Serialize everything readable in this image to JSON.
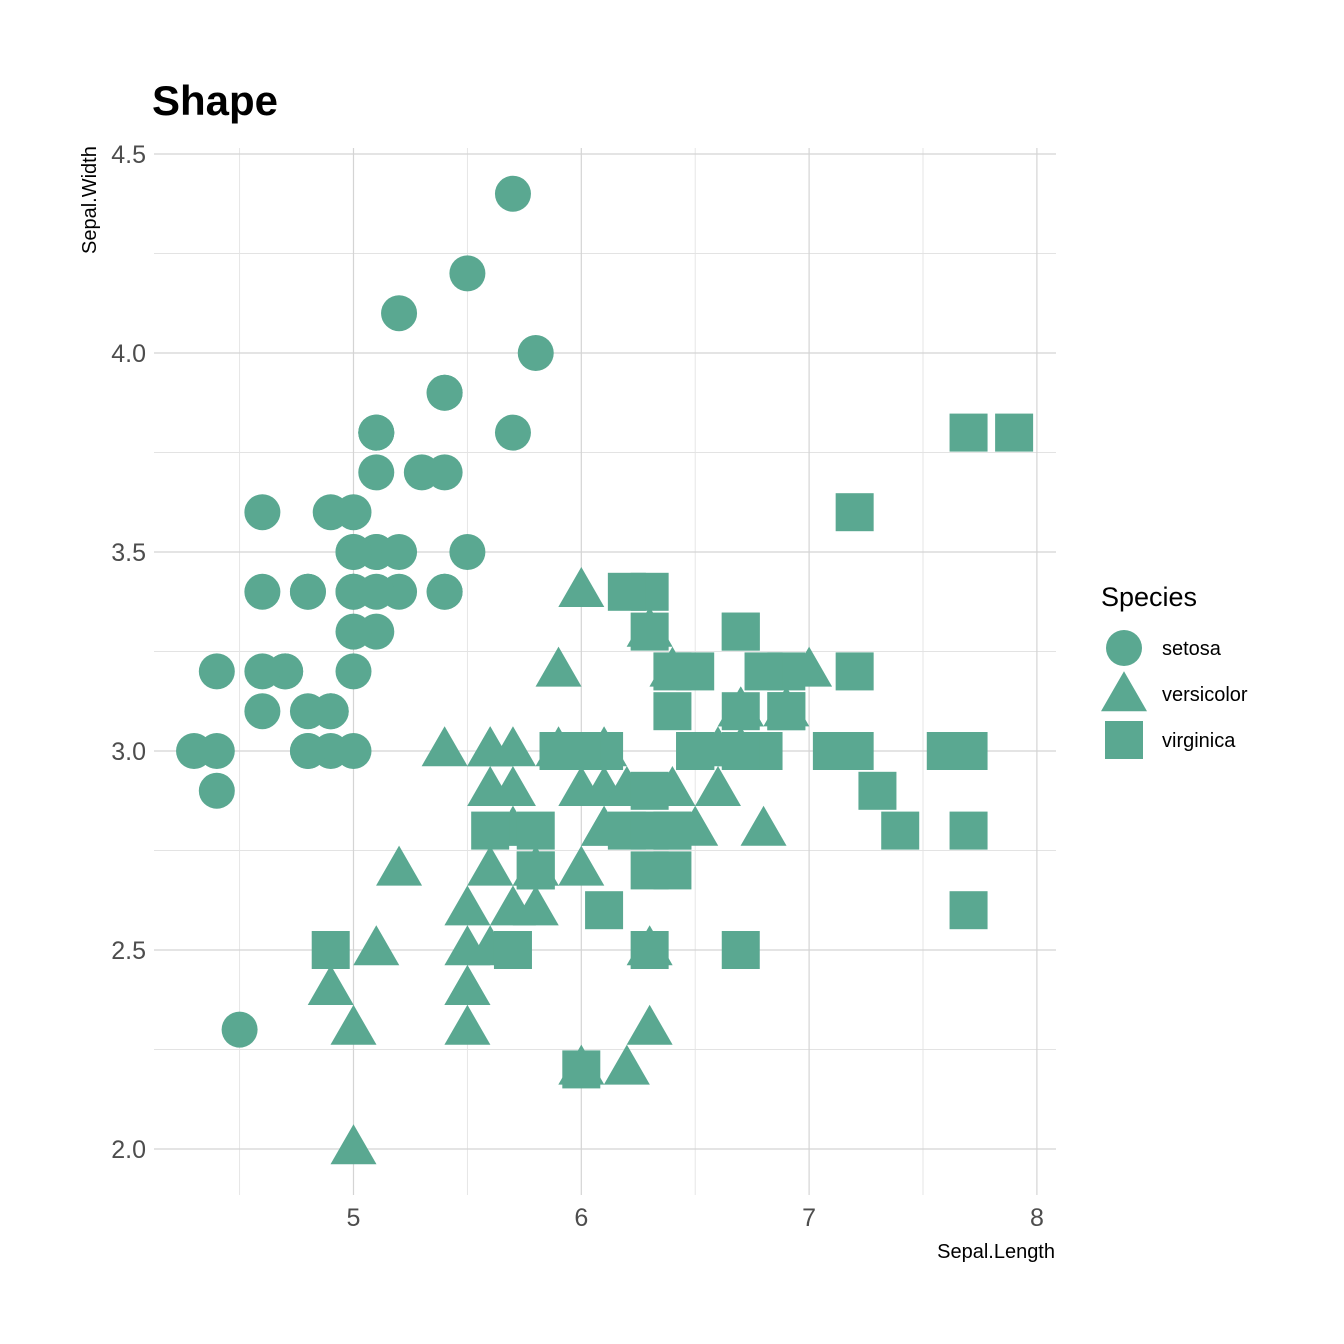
{
  "chart_data": {
    "type": "scatter",
    "title": "Shape",
    "xlabel": "Sepal.Length",
    "ylabel": "Sepal.Width",
    "xlim": [
      4.3,
      7.9
    ],
    "ylim": [
      2.0,
      4.4
    ],
    "x_ticks": [
      5,
      6,
      7,
      8
    ],
    "y_ticks": [
      2.0,
      2.5,
      3.0,
      3.5,
      4.0,
      4.5
    ],
    "x_tick_labels": [
      "5",
      "6",
      "7",
      "8"
    ],
    "y_tick_labels": [
      "2.0",
      "2.5",
      "3.0",
      "3.5",
      "4.0",
      "4.5"
    ],
    "grid": true,
    "marker_color": "#5aa891",
    "legend": {
      "title": "Species",
      "position": "right",
      "entries": [
        {
          "label": "setosa",
          "shape": "circle"
        },
        {
          "label": "versicolor",
          "shape": "triangle"
        },
        {
          "label": "virginica",
          "shape": "square"
        }
      ]
    },
    "series": [
      {
        "name": "setosa",
        "shape": "circle",
        "points": [
          [
            5.1,
            3.5
          ],
          [
            4.9,
            3.0
          ],
          [
            4.7,
            3.2
          ],
          [
            4.6,
            3.1
          ],
          [
            5.0,
            3.6
          ],
          [
            5.4,
            3.9
          ],
          [
            4.6,
            3.4
          ],
          [
            5.0,
            3.4
          ],
          [
            4.4,
            2.9
          ],
          [
            4.9,
            3.1
          ],
          [
            5.4,
            3.7
          ],
          [
            4.8,
            3.4
          ],
          [
            4.8,
            3.0
          ],
          [
            4.3,
            3.0
          ],
          [
            5.8,
            4.0
          ],
          [
            5.7,
            4.4
          ],
          [
            5.4,
            3.9
          ],
          [
            5.1,
            3.5
          ],
          [
            5.7,
            3.8
          ],
          [
            5.1,
            3.8
          ],
          [
            5.4,
            3.4
          ],
          [
            5.1,
            3.7
          ],
          [
            4.6,
            3.6
          ],
          [
            5.1,
            3.3
          ],
          [
            4.8,
            3.4
          ],
          [
            5.0,
            3.0
          ],
          [
            5.0,
            3.4
          ],
          [
            5.2,
            3.5
          ],
          [
            5.2,
            3.4
          ],
          [
            4.7,
            3.2
          ],
          [
            4.8,
            3.1
          ],
          [
            5.4,
            3.4
          ],
          [
            5.2,
            4.1
          ],
          [
            5.5,
            4.2
          ],
          [
            4.9,
            3.1
          ],
          [
            5.0,
            3.2
          ],
          [
            5.5,
            3.5
          ],
          [
            4.9,
            3.6
          ],
          [
            4.4,
            3.0
          ],
          [
            5.1,
            3.4
          ],
          [
            5.0,
            3.5
          ],
          [
            4.5,
            2.3
          ],
          [
            4.4,
            3.2
          ],
          [
            5.0,
            3.5
          ],
          [
            5.1,
            3.8
          ],
          [
            4.8,
            3.0
          ],
          [
            5.1,
            3.8
          ],
          [
            4.6,
            3.2
          ],
          [
            5.3,
            3.7
          ],
          [
            5.0,
            3.3
          ]
        ]
      },
      {
        "name": "versicolor",
        "shape": "triangle",
        "points": [
          [
            7.0,
            3.2
          ],
          [
            6.4,
            3.2
          ],
          [
            6.9,
            3.1
          ],
          [
            5.5,
            2.3
          ],
          [
            6.5,
            2.8
          ],
          [
            5.7,
            2.8
          ],
          [
            6.3,
            3.3
          ],
          [
            4.9,
            2.4
          ],
          [
            6.6,
            2.9
          ],
          [
            5.2,
            2.7
          ],
          [
            5.0,
            2.0
          ],
          [
            5.9,
            3.0
          ],
          [
            6.0,
            2.2
          ],
          [
            6.1,
            2.9
          ],
          [
            5.6,
            2.9
          ],
          [
            6.7,
            3.1
          ],
          [
            5.6,
            3.0
          ],
          [
            5.8,
            2.7
          ],
          [
            6.2,
            2.2
          ],
          [
            5.6,
            2.5
          ],
          [
            5.9,
            3.2
          ],
          [
            6.1,
            2.8
          ],
          [
            6.3,
            2.5
          ],
          [
            6.1,
            2.8
          ],
          [
            6.4,
            2.9
          ],
          [
            6.6,
            3.0
          ],
          [
            6.8,
            2.8
          ],
          [
            6.7,
            3.0
          ],
          [
            6.0,
            2.9
          ],
          [
            5.7,
            2.6
          ],
          [
            5.5,
            2.4
          ],
          [
            5.5,
            2.4
          ],
          [
            5.8,
            2.7
          ],
          [
            6.0,
            2.7
          ],
          [
            5.4,
            3.0
          ],
          [
            6.0,
            3.4
          ],
          [
            6.7,
            3.1
          ],
          [
            6.3,
            2.3
          ],
          [
            5.6,
            3.0
          ],
          [
            5.5,
            2.5
          ],
          [
            5.5,
            2.6
          ],
          [
            6.1,
            3.0
          ],
          [
            5.8,
            2.6
          ],
          [
            5.0,
            2.3
          ],
          [
            5.6,
            2.7
          ],
          [
            5.7,
            3.0
          ],
          [
            5.7,
            2.9
          ],
          [
            6.2,
            2.9
          ],
          [
            5.1,
            2.5
          ],
          [
            5.7,
            2.8
          ]
        ]
      },
      {
        "name": "virginica",
        "shape": "square",
        "points": [
          [
            6.3,
            3.3
          ],
          [
            5.8,
            2.7
          ],
          [
            7.1,
            3.0
          ],
          [
            6.3,
            2.9
          ],
          [
            6.5,
            3.0
          ],
          [
            7.6,
            3.0
          ],
          [
            4.9,
            2.5
          ],
          [
            7.3,
            2.9
          ],
          [
            6.7,
            2.5
          ],
          [
            7.2,
            3.6
          ],
          [
            6.5,
            3.2
          ],
          [
            6.4,
            2.7
          ],
          [
            6.8,
            3.0
          ],
          [
            5.7,
            2.5
          ],
          [
            5.8,
            2.8
          ],
          [
            6.4,
            3.2
          ],
          [
            6.5,
            3.0
          ],
          [
            7.7,
            3.8
          ],
          [
            7.7,
            2.6
          ],
          [
            6.0,
            2.2
          ],
          [
            6.9,
            3.2
          ],
          [
            5.6,
            2.8
          ],
          [
            7.7,
            2.8
          ],
          [
            6.3,
            2.7
          ],
          [
            6.7,
            3.3
          ],
          [
            7.2,
            3.2
          ],
          [
            6.2,
            2.8
          ],
          [
            6.1,
            3.0
          ],
          [
            6.4,
            2.8
          ],
          [
            7.2,
            3.0
          ],
          [
            7.4,
            2.8
          ],
          [
            7.9,
            3.8
          ],
          [
            6.4,
            2.8
          ],
          [
            6.3,
            2.8
          ],
          [
            6.1,
            2.6
          ],
          [
            7.7,
            3.0
          ],
          [
            6.3,
            3.4
          ],
          [
            6.4,
            3.1
          ],
          [
            6.0,
            3.0
          ],
          [
            6.9,
            3.1
          ],
          [
            6.7,
            3.1
          ],
          [
            6.9,
            3.1
          ],
          [
            5.8,
            2.7
          ],
          [
            6.8,
            3.2
          ],
          [
            6.7,
            3.3
          ],
          [
            6.7,
            3.0
          ],
          [
            6.3,
            2.5
          ],
          [
            6.5,
            3.0
          ],
          [
            6.2,
            3.4
          ],
          [
            5.9,
            3.0
          ]
        ]
      }
    ]
  }
}
